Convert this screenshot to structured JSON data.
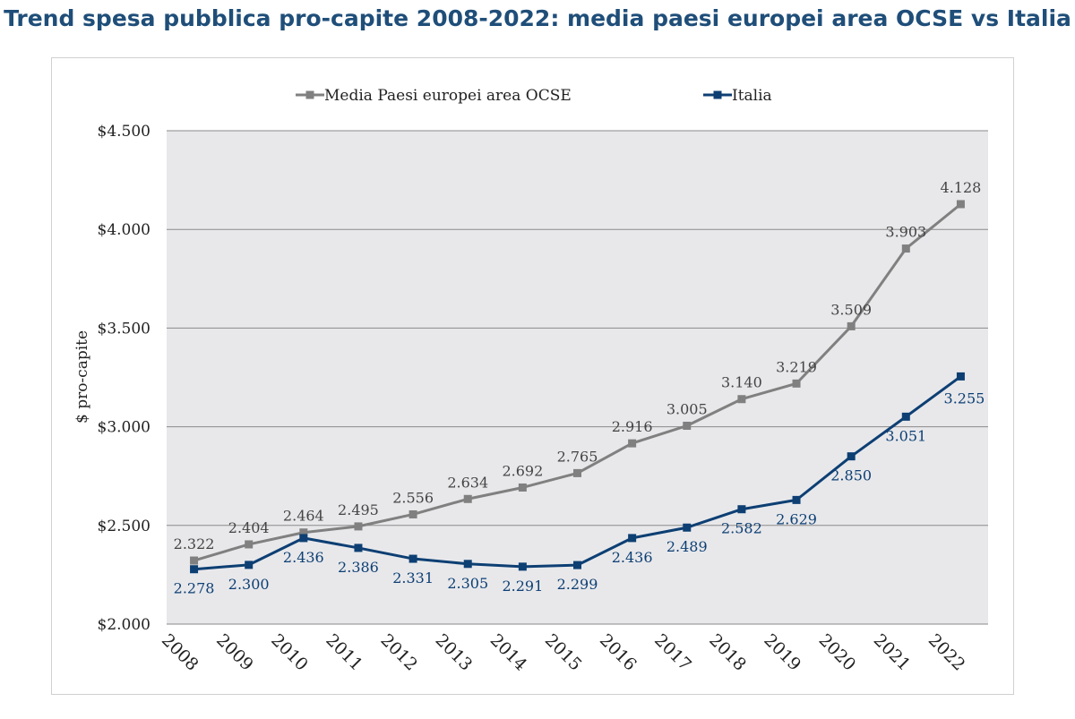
{
  "title": "Trend spesa pubblica pro-capite 2008-2022: media paesi europei area OCSE vs Italia",
  "chart_data": {
    "type": "line",
    "title": "Trend spesa pubblica pro-capite 2008-2022: media paesi europei area OCSE vs Italia",
    "ylabel": "$ pro-capite",
    "xlabel": "",
    "x": [
      "2008",
      "2009",
      "2010",
      "2011",
      "2012",
      "2013",
      "2014",
      "2015",
      "2016",
      "2017",
      "2018",
      "2019",
      "2020",
      "2021",
      "2022"
    ],
    "ylim": [
      2000,
      4500
    ],
    "yticks": [
      2000,
      2500,
      3000,
      3500,
      4000,
      4500
    ],
    "ytick_labels": [
      "$2.000",
      "$2.500",
      "$3.000",
      "$3.500",
      "$4.000",
      "$4.500"
    ],
    "grid": true,
    "legend_position": "top",
    "series": [
      {
        "name": "Media Paesi europei area OCSE",
        "color": "#808080",
        "values": [
          2322,
          2404,
          2464,
          2495,
          2556,
          2634,
          2692,
          2765,
          2916,
          3005,
          3140,
          3219,
          3509,
          3903,
          4128
        ],
        "labels": [
          "2.322",
          "2.404",
          "2.464",
          "2.495",
          "2.556",
          "2.634",
          "2.692",
          "2.765",
          "2.916",
          "3.005",
          "3.140",
          "3.219",
          "3.509",
          "3.903",
          "4.128"
        ]
      },
      {
        "name": "Italia",
        "color": "#0d3f73",
        "values": [
          2278,
          2300,
          2436,
          2386,
          2331,
          2305,
          2291,
          2299,
          2436,
          2489,
          2582,
          2629,
          2850,
          3051,
          3255
        ],
        "labels": [
          "2.278",
          "2.300",
          "2.436",
          "2.386",
          "2.331",
          "2.305",
          "2.291",
          "2.299",
          "2.436",
          "2.489",
          "2.582",
          "2.629",
          "2.850",
          "3.051",
          "3.255"
        ]
      }
    ]
  }
}
